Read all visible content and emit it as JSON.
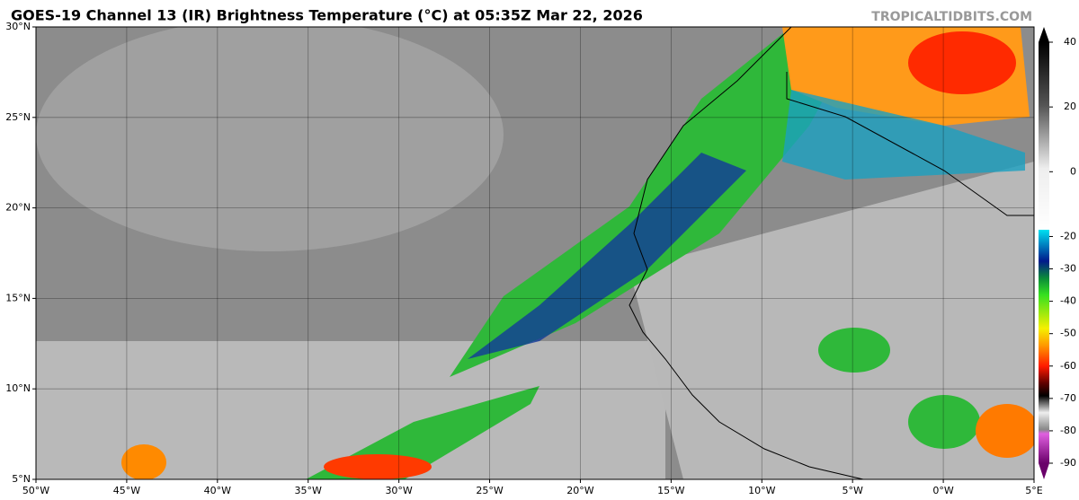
{
  "title": "GOES-19 Channel 13 (IR) Brightness Temperature (°C) at 05:35Z Mar 22, 2026",
  "credit": "TROPICALTIDBITS.COM",
  "map": {
    "xlim": [
      -50,
      5
    ],
    "ylim": [
      5,
      30
    ],
    "xticks": [
      {
        "value": -50,
        "label": "50°W"
      },
      {
        "value": -45,
        "label": "45°W"
      },
      {
        "value": -40,
        "label": "40°W"
      },
      {
        "value": -35,
        "label": "35°W"
      },
      {
        "value": -30,
        "label": "30°W"
      },
      {
        "value": -25,
        "label": "25°W"
      },
      {
        "value": -20,
        "label": "20°W"
      },
      {
        "value": -15,
        "label": "15°W"
      },
      {
        "value": -10,
        "label": "10°W"
      },
      {
        "value": -5,
        "label": "5°W"
      },
      {
        "value": 0,
        "label": "0°W"
      },
      {
        "value": 5,
        "label": "5°E"
      }
    ],
    "yticks": [
      {
        "value": 5,
        "label": "5°N"
      },
      {
        "value": 10,
        "label": "10°N"
      },
      {
        "value": 15,
        "label": "15°N"
      },
      {
        "value": 20,
        "label": "20°N"
      },
      {
        "value": 25,
        "label": "25°N"
      },
      {
        "value": 30,
        "label": "30°N"
      }
    ],
    "grid": true
  },
  "colorbar": {
    "lim": [
      -90,
      40
    ],
    "ticks": [
      40,
      20,
      0,
      -20,
      -30,
      -40,
      -50,
      -60,
      -70,
      -80,
      -90
    ]
  }
}
